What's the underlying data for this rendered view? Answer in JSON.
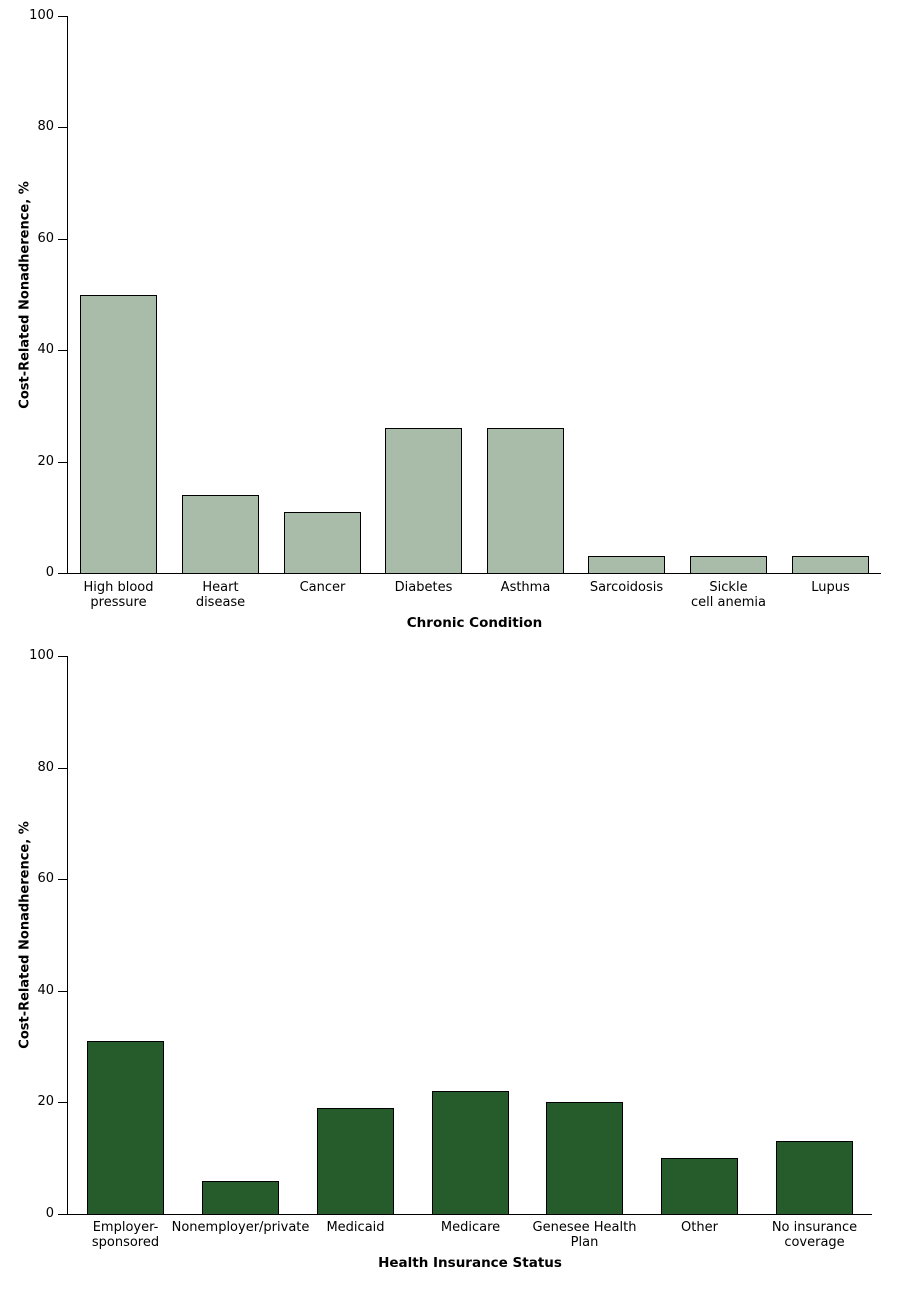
{
  "figure": {
    "background": "#ffffff",
    "axis_color": "#000000",
    "text_color": "#000000"
  },
  "chart_data": [
    {
      "type": "bar",
      "title": "",
      "xlabel": "Chronic Condition",
      "ylabel": "Cost-Related Nonadherence, %",
      "ylim": [
        0,
        100
      ],
      "yticks": [
        0,
        20,
        40,
        60,
        80,
        100
      ],
      "grid": false,
      "legend": null,
      "bar_color": "#a8bca9",
      "bar_border_color": "#000000",
      "categories": [
        "High blood pressure",
        "Heart disease",
        "Cancer",
        "Diabetes",
        "Asthma",
        "Sarcoidosis",
        "Sickle cell anemia",
        "Lupus"
      ],
      "category_lines": [
        [
          "High blood",
          "pressure"
        ],
        [
          "Heart",
          "disease"
        ],
        [
          "Cancer"
        ],
        [
          "Diabetes"
        ],
        [
          "Asthma"
        ],
        [
          "Sarcoidosis"
        ],
        [
          "Sickle",
          "cell anemia"
        ],
        [
          "Lupus"
        ]
      ],
      "values": [
        50,
        14,
        11,
        26,
        26,
        3,
        3,
        3
      ]
    },
    {
      "type": "bar",
      "title": "",
      "xlabel": "Health Insurance Status",
      "ylabel": "Cost-Related Nonadherence, %",
      "ylim": [
        0,
        100
      ],
      "yticks": [
        0,
        20,
        40,
        60,
        80,
        100
      ],
      "grid": false,
      "legend": null,
      "bar_color": "#265c2b",
      "bar_border_color": "#000000",
      "categories": [
        "Employer-sponsored",
        "Nonemployer/private",
        "Medicaid",
        "Medicare",
        "Genesee Health Plan",
        "Other",
        "No insurance coverage"
      ],
      "category_lines": [
        [
          "Employer-",
          "sponsored"
        ],
        [
          "Nonemployer/private"
        ],
        [
          "Medicaid"
        ],
        [
          "Medicare"
        ],
        [
          "Genesee Health",
          "Plan"
        ],
        [
          "Other"
        ],
        [
          "No insurance",
          "coverage"
        ]
      ],
      "values": [
        31,
        6,
        19,
        22,
        20,
        10,
        13
      ]
    }
  ]
}
